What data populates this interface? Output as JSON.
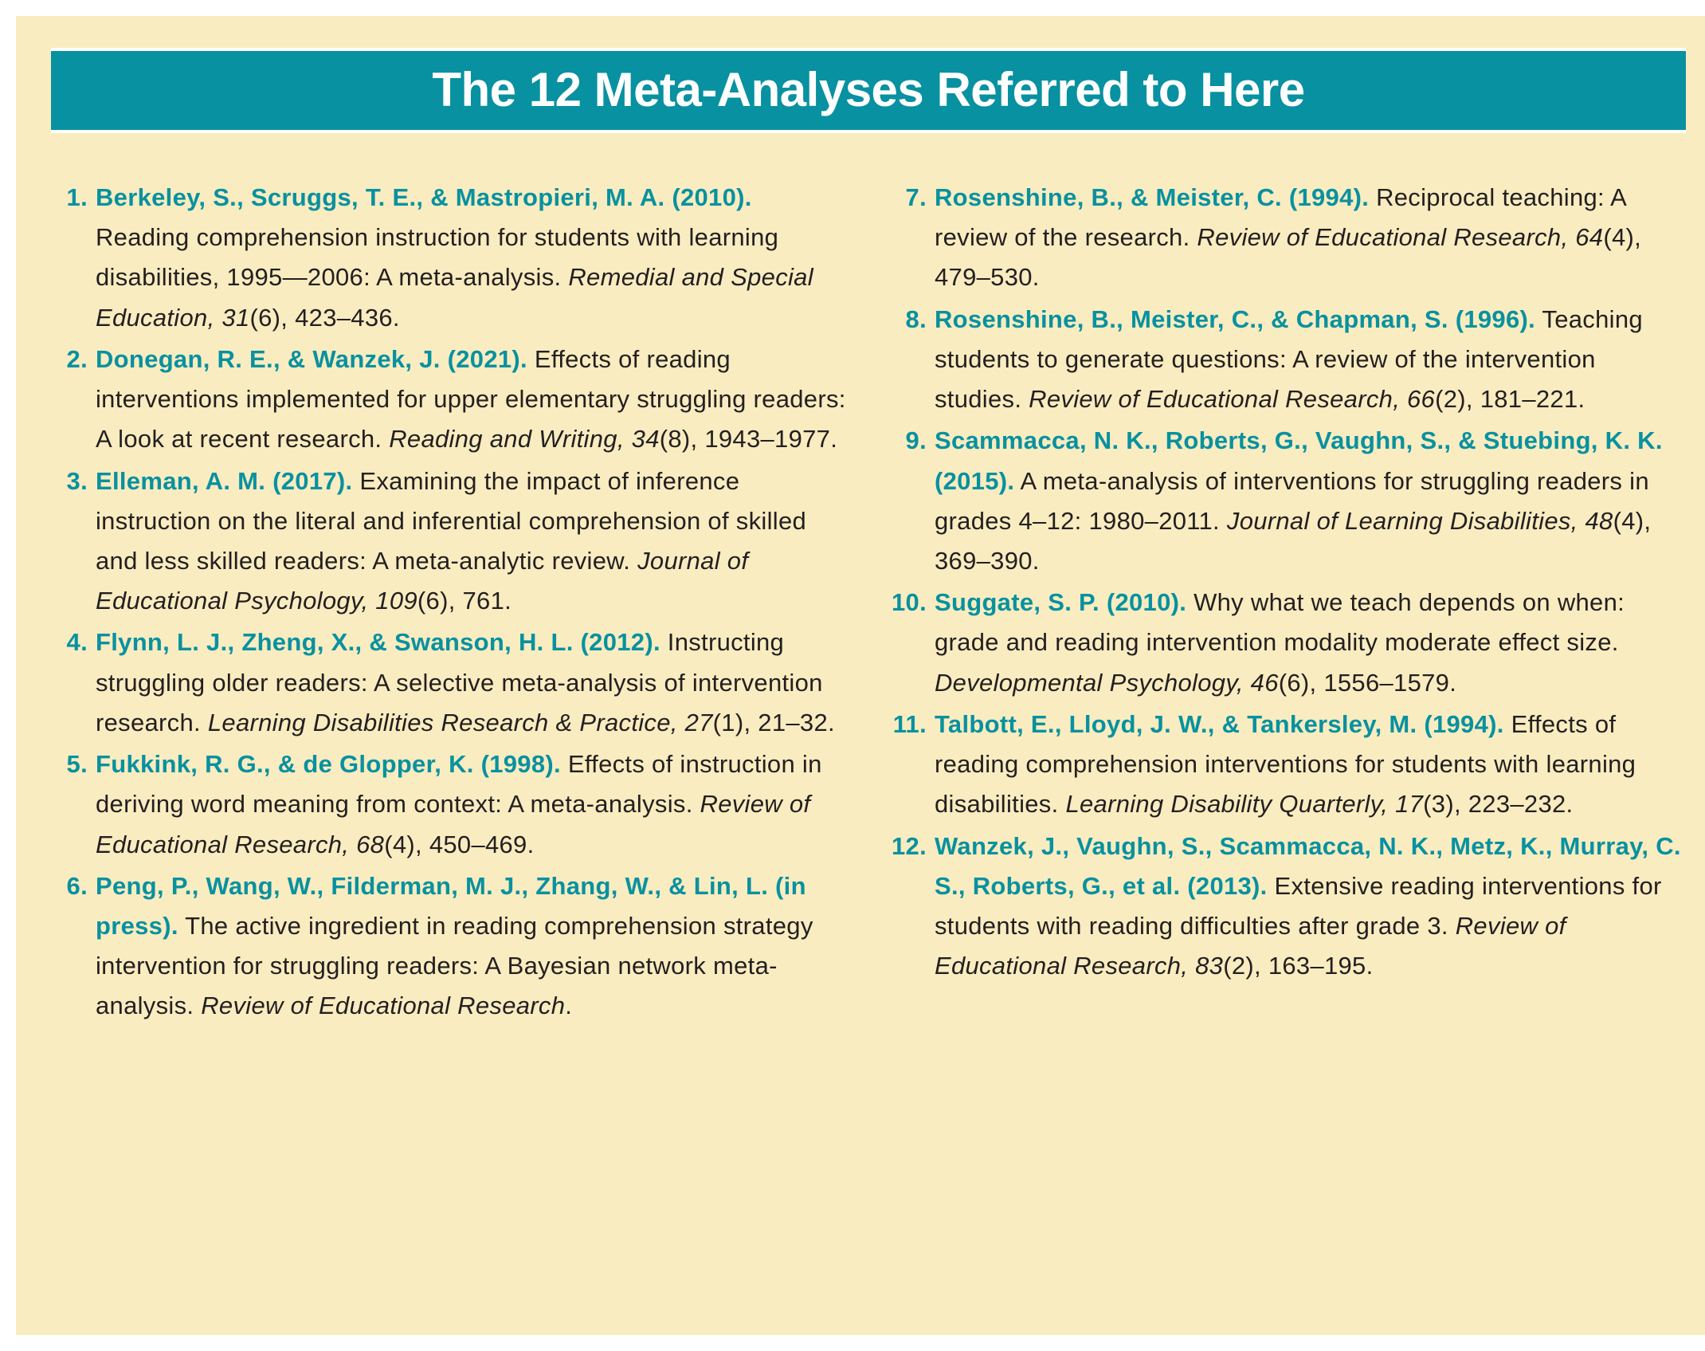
{
  "colors": {
    "page_bg": "#f9ecc0",
    "bar_bg": "#0891a0",
    "bar_text": "#ffffff",
    "body_text": "#231f20",
    "accent": "#0891a0"
  },
  "title": "The 12 Meta-Analyses Referred to Here",
  "references": [
    {
      "authors": "Berkeley, S., Scruggs, T. E., & Mastropieri, M. A. (2010).",
      "title": "Reading comprehension instruction for students with learning disabilities, 1995—2006: A meta-analysis.",
      "journal": "Remedial and Special Education, 31",
      "issue_pages": "(6), 423–436."
    },
    {
      "authors": "Donegan, R. E., & Wanzek, J. (2021).",
      "title": "Effects of reading interventions implemented for upper elementary struggling readers: A look at recent research.",
      "journal": "Reading and Writing, 34",
      "issue_pages": "(8), 1943–1977."
    },
    {
      "authors": "Elleman, A. M. (2017).",
      "title": "Examining the impact of inference instruction on the literal and inferential comprehension of skilled and less skilled readers: A meta-analytic review.",
      "journal": "Journal of Educational Psychology, 109",
      "issue_pages": "(6), 761."
    },
    {
      "authors": "Flynn, L. J., Zheng, X., & Swanson, H. L. (2012).",
      "title": "Instructing struggling older readers: A selective meta-analysis of intervention research.",
      "journal": "Learning Disabilities Research & Practice, 27",
      "issue_pages": "(1), 21–32."
    },
    {
      "authors": "Fukkink, R. G., & de Glopper, K. (1998).",
      "title": "Effects of instruction in deriving word meaning from context: A meta-analysis.",
      "journal": "Review of Educational Research, 68",
      "issue_pages": "(4), 450–469."
    },
    {
      "authors": "Peng, P., Wang, W., Filderman, M. J., Zhang, W., & Lin, L. (in press).",
      "title": "The active ingredient in reading comprehension strategy intervention for struggling readers: A Bayesian network meta-analysis.",
      "journal": "Review of Educational Research",
      "issue_pages": "."
    },
    {
      "authors": "Rosenshine, B., & Meister, C. (1994).",
      "title": "Reciprocal teaching: A review of the research.",
      "journal": "Review of Educational Research, 64",
      "issue_pages": "(4), 479–530."
    },
    {
      "authors": "Rosenshine, B., Meister, C., & Chapman, S. (1996).",
      "title": "Teaching students to generate questions: A review of the intervention studies.",
      "journal": "Review of Educational Research, 66",
      "issue_pages": "(2), 181–221."
    },
    {
      "authors": "Scammacca, N. K., Roberts, G., Vaughn, S., & Stuebing, K. K. (2015).",
      "title": "A meta-analysis of interventions for struggling readers in grades 4–12: 1980–2011.",
      "journal": "Journal of Learning Disabilities, 48",
      "issue_pages": "(4), 369–390."
    },
    {
      "authors": "Suggate, S. P. (2010).",
      "title": "Why what we teach depends on when: grade and reading intervention modality moderate effect size.",
      "journal": "Developmental Psychology, 46",
      "issue_pages": "(6), 1556–1579."
    },
    {
      "authors": "Talbott, E., Lloyd, J. W., & Tankersley, M. (1994).",
      "title": "Effects of reading comprehension interventions for students with learning disabilities.",
      "journal": "Learning Disability Quarterly, 17",
      "issue_pages": "(3), 223–232."
    },
    {
      "authors": "Wanzek, J., Vaughn, S., Scammacca, N. K., Metz, K., Murray, C. S., Roberts, G., et al. (2013).",
      "title": "Extensive reading interventions for students with reading difficulties after grade 3.",
      "journal": "Review of Educational Research, 83",
      "issue_pages": "(2), 163–195."
    }
  ]
}
